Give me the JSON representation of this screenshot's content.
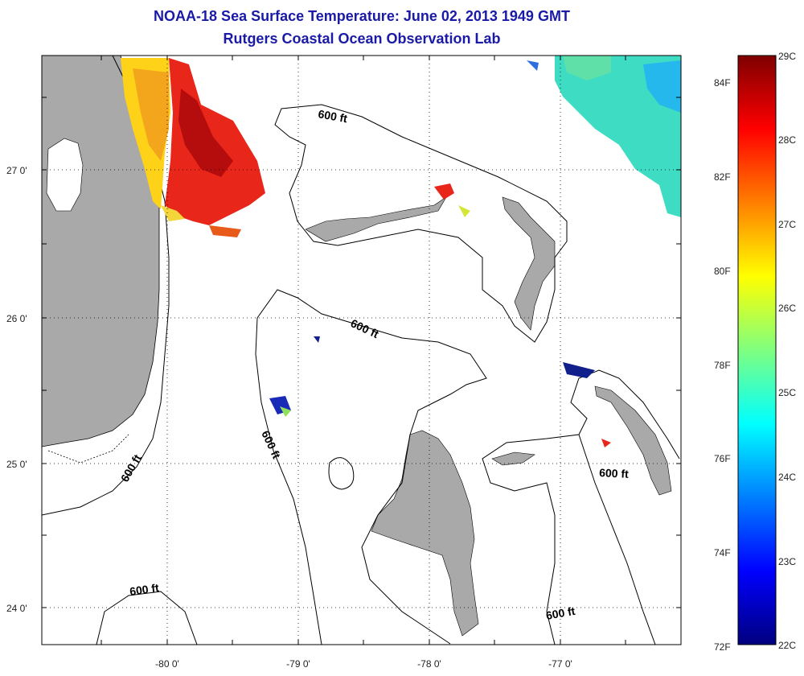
{
  "title": "NOAA-18 Sea Surface Temperature:  June 02, 2013 1949 GMT",
  "subtitle": "Rutgers Coastal Ocean Observation Lab",
  "map": {
    "lat_labels": [
      "27 0'",
      "26 0'",
      "25 0'",
      "24 0'"
    ],
    "lon_labels": [
      "-80 0'",
      "-79 0'",
      "-78 0'",
      "-77 0'"
    ],
    "contour_label": "600 ft",
    "colors": {
      "land": "#a9a9a9",
      "ocean": "#ffffff",
      "contour": "#000000"
    }
  },
  "colorbar": {
    "fahrenheit": [
      "84F",
      "82F",
      "80F",
      "78F",
      "76F",
      "74F",
      "72F"
    ],
    "celsius": [
      "29C",
      "28C",
      "27C",
      "26C",
      "25C",
      "24C",
      "23C",
      "22C"
    ],
    "min_c": 22,
    "max_c": 29,
    "colormap": "jet"
  }
}
